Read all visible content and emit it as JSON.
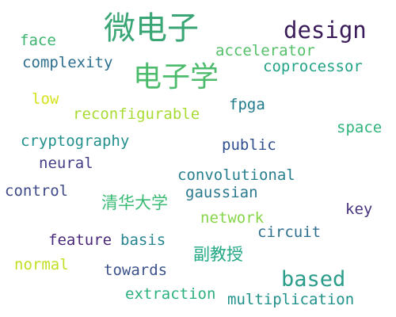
{
  "word_cloud": {
    "words": [
      {
        "text": "微电子",
        "color": "#3aa575"
      },
      {
        "text": "design",
        "color": "#3b1c5a"
      },
      {
        "text": "face",
        "color": "#3cb36e"
      },
      {
        "text": "accelerator",
        "color": "#55c06a"
      },
      {
        "text": "complexity",
        "color": "#2c6e8e"
      },
      {
        "text": "电子学",
        "color": "#4cbb6c"
      },
      {
        "text": "coprocessor",
        "color": "#22a386"
      },
      {
        "text": "low",
        "color": "#d5e21a"
      },
      {
        "text": "fpga",
        "color": "#1f7a8c"
      },
      {
        "text": "reconfigurable",
        "color": "#a8db34"
      },
      {
        "text": "space",
        "color": "#2fb47c"
      },
      {
        "text": "cryptography",
        "color": "#21908d"
      },
      {
        "text": "public",
        "color": "#2f4f8e"
      },
      {
        "text": "neural",
        "color": "#433e85"
      },
      {
        "text": "convolutional",
        "color": "#277f8e"
      },
      {
        "text": "control",
        "color": "#3e4a89"
      },
      {
        "text": "清华大学",
        "color": "#3bbb75"
      },
      {
        "text": "gaussian",
        "color": "#2a788e"
      },
      {
        "text": "key",
        "color": "#46327e"
      },
      {
        "text": "network",
        "color": "#86d549"
      },
      {
        "text": "circuit",
        "color": "#2e6e8e"
      },
      {
        "text": "feature",
        "color": "#482878"
      },
      {
        "text": "basis",
        "color": "#25848e"
      },
      {
        "text": "副教授",
        "color": "#22a884"
      },
      {
        "text": "normal",
        "color": "#c2df23"
      },
      {
        "text": "towards",
        "color": "#3b528b"
      },
      {
        "text": "based",
        "color": "#2a9d8a"
      },
      {
        "text": "extraction",
        "color": "#2cb17e"
      },
      {
        "text": "multiplication",
        "color": "#21918c"
      }
    ]
  }
}
